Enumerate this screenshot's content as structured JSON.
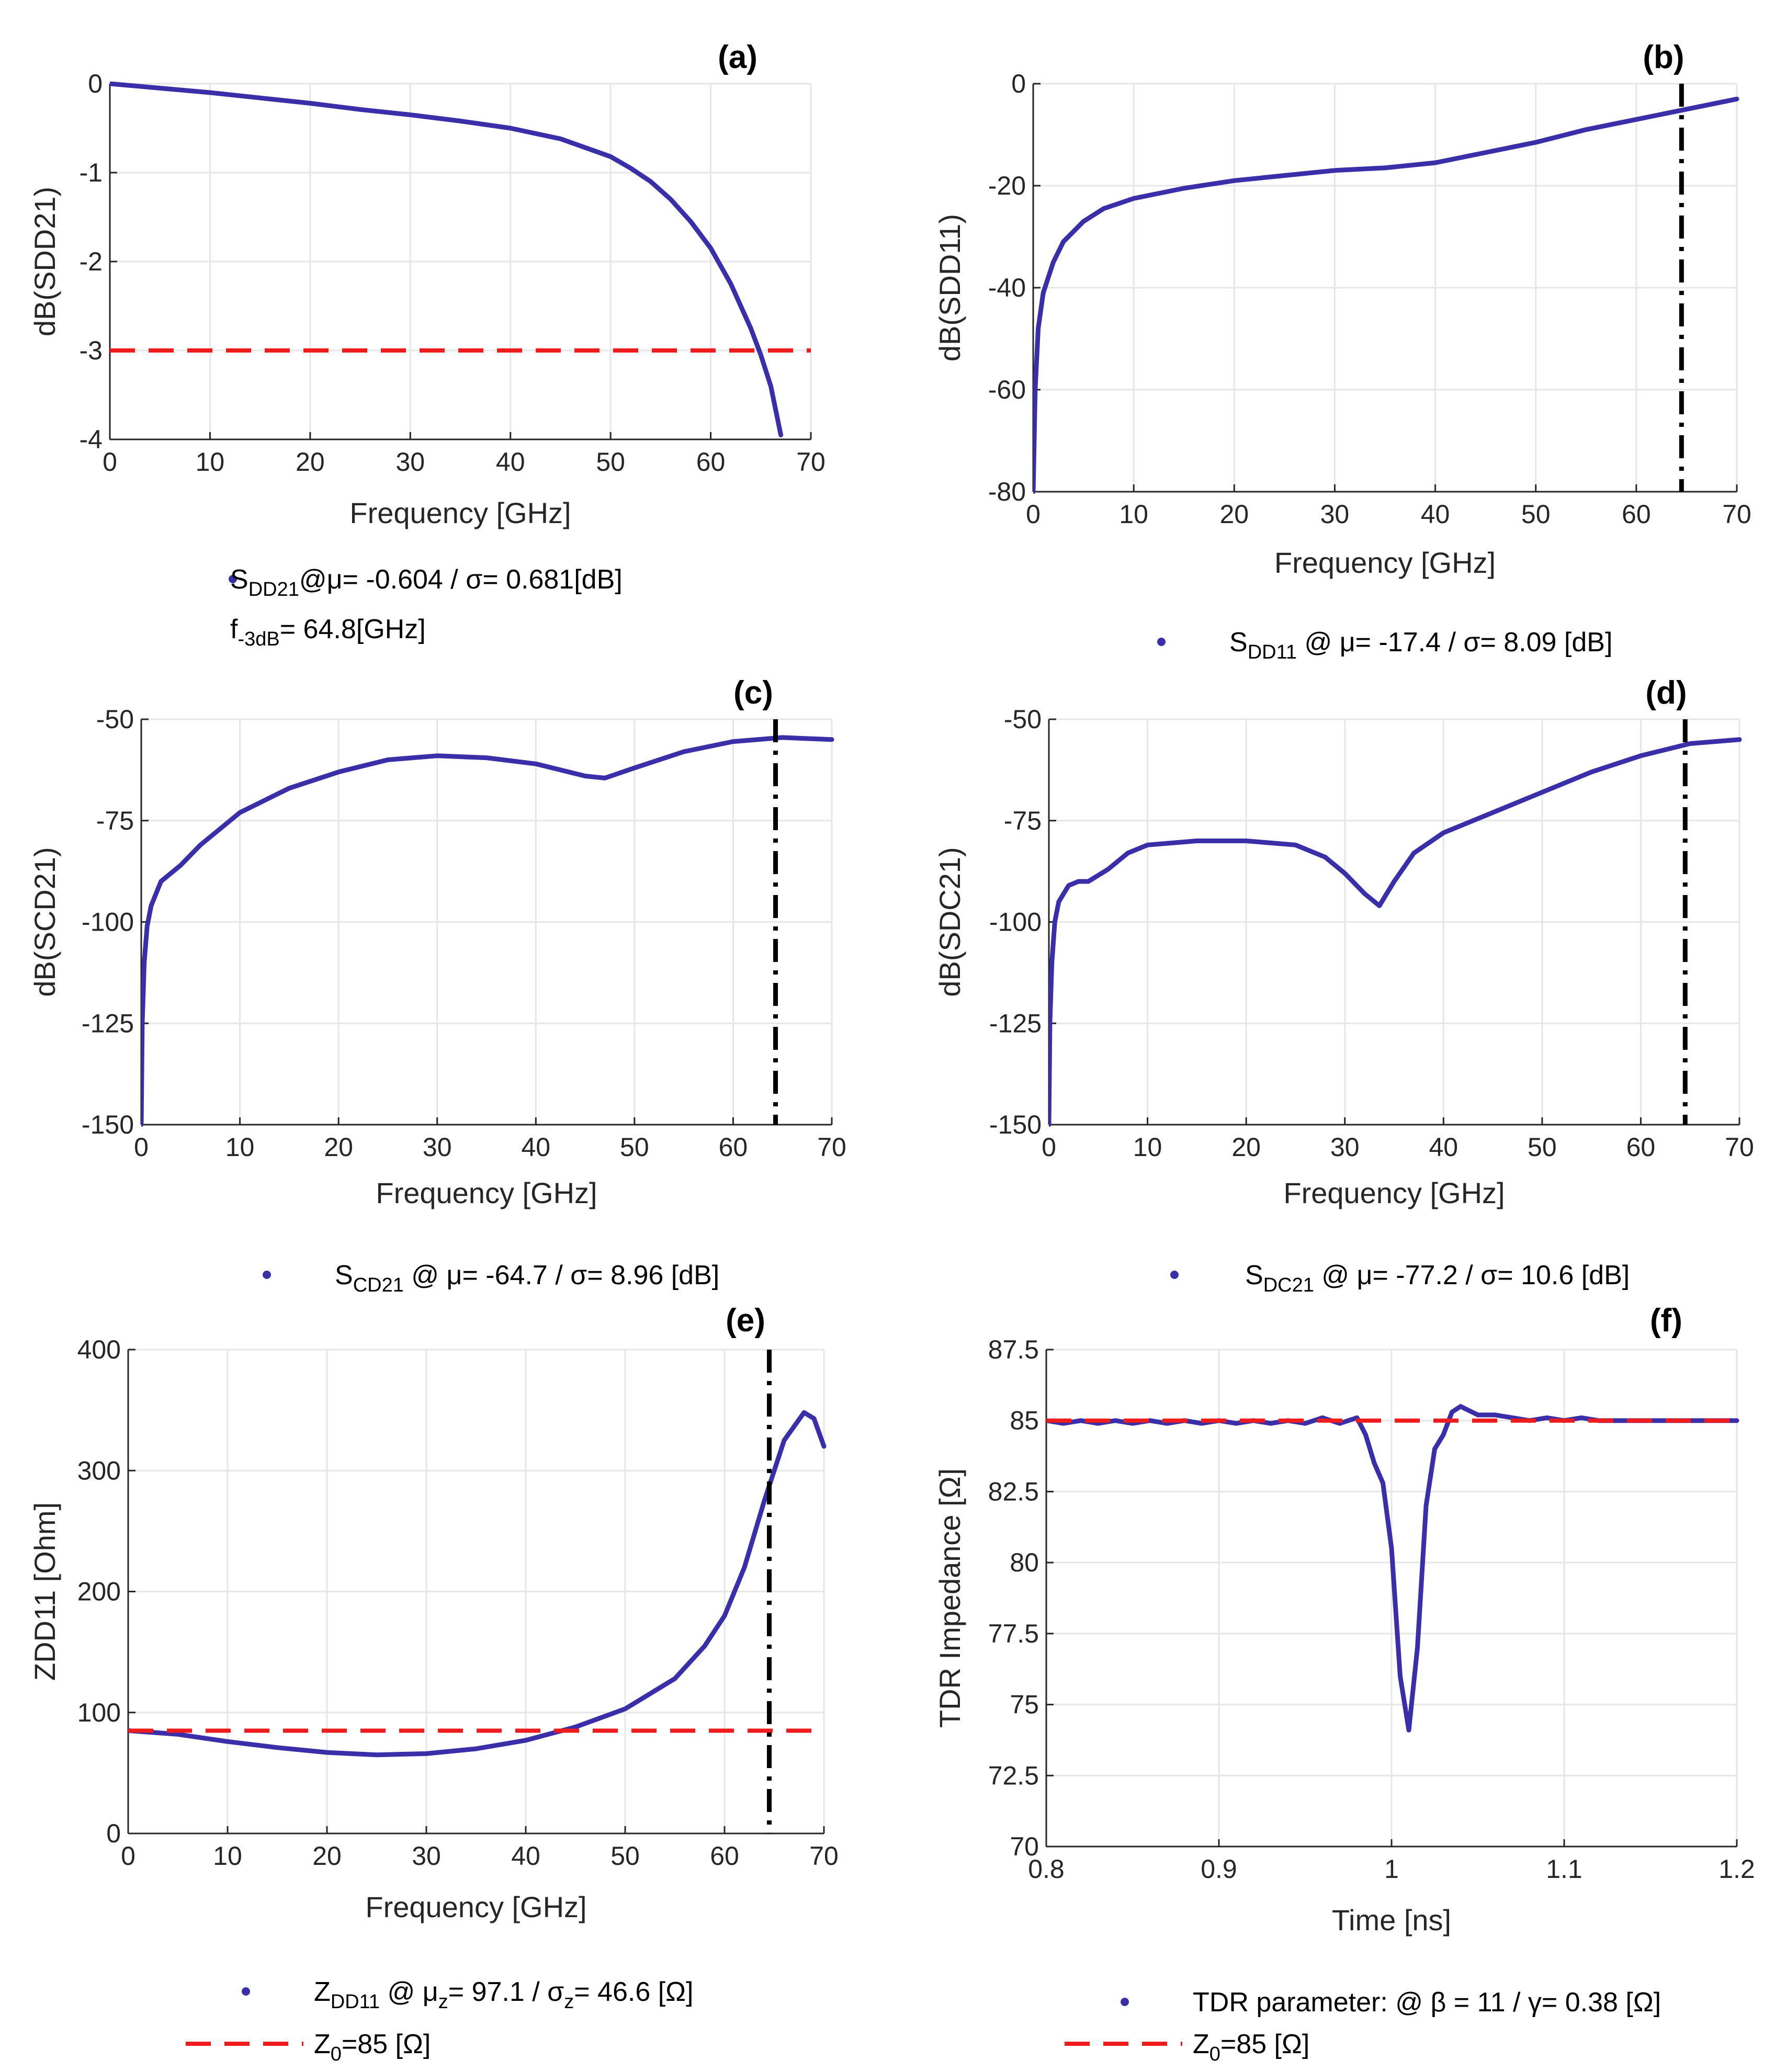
{
  "colors": {
    "series": "#3a2fa8",
    "reference": "#ee1c1c",
    "marker": "#000000",
    "grid": "#e6e6e6",
    "axis": "#262626"
  },
  "chart_data": [
    {
      "id": "a",
      "type": "line",
      "title": "(a)",
      "xlabel": "Frequency [GHz]",
      "ylabel": "dB(SDD21)",
      "xlim": [
        0,
        70
      ],
      "ylim": [
        -4,
        0
      ],
      "xticks": [
        0,
        10,
        20,
        30,
        40,
        50,
        60,
        70
      ],
      "yticks": [
        -4,
        -3,
        -2,
        -1,
        0
      ],
      "grid": true,
      "series": [
        {
          "name": "SDD21",
          "color": "#3a2fa8",
          "x": [
            0,
            5,
            10,
            15,
            20,
            25,
            30,
            35,
            40,
            45,
            50,
            52,
            54,
            56,
            58,
            60,
            62,
            64,
            65,
            66,
            67
          ],
          "y": [
            0,
            -0.05,
            -0.1,
            -0.16,
            -0.22,
            -0.29,
            -0.35,
            -0.42,
            -0.5,
            -0.62,
            -0.82,
            -0.95,
            -1.1,
            -1.3,
            -1.55,
            -1.85,
            -2.25,
            -2.75,
            -3.05,
            -3.4,
            -3.95
          ]
        }
      ],
      "hlines": [
        {
          "y": -3,
          "color": "#ee1c1c",
          "style": "dashed"
        }
      ],
      "vlines": [],
      "legend": [
        {
          "kind": "marker",
          "text": "S",
          "sub": "DD21",
          "tail": "@μ= -0.604 / σ= 0.681[dB]",
          "line2": "f",
          "line2sub": "-3dB",
          "line2tail": "= 64.8[GHz]"
        }
      ]
    },
    {
      "id": "b",
      "type": "line",
      "title": "(b)",
      "xlabel": "Frequency [GHz]",
      "ylabel": "dB(SDD11)",
      "xlim": [
        0,
        70
      ],
      "ylim": [
        -80,
        0
      ],
      "xticks": [
        0,
        10,
        20,
        30,
        40,
        50,
        60,
        70
      ],
      "yticks": [
        -80,
        -60,
        -40,
        -20,
        0
      ],
      "grid": true,
      "series": [
        {
          "name": "SDD11",
          "color": "#3a2fa8",
          "x": [
            0,
            0.2,
            0.5,
            1,
            2,
            3,
            5,
            7,
            10,
            15,
            20,
            25,
            30,
            35,
            40,
            45,
            50,
            55,
            60,
            65,
            70
          ],
          "y": [
            -80,
            -60,
            -48,
            -41,
            -35,
            -31,
            -27,
            -24.5,
            -22.5,
            -20.5,
            -19,
            -18,
            -17,
            -16.5,
            -15.5,
            -13.5,
            -11.5,
            -9,
            -7,
            -5,
            -3
          ]
        }
      ],
      "hlines": [],
      "vlines": [
        {
          "x": 64.5,
          "color": "#000000",
          "style": "dashdot"
        }
      ],
      "legend": [
        {
          "kind": "marker",
          "text": "S",
          "sub": "DD11",
          "tail": " @ μ= -17.4 / σ= 8.09 [dB]"
        }
      ]
    },
    {
      "id": "c",
      "type": "line",
      "title": "(c)",
      "xlabel": "Frequency [GHz]",
      "ylabel": "dB(SCD21)",
      "xlim": [
        0,
        70
      ],
      "ylim": [
        -150,
        -50
      ],
      "xticks": [
        0,
        10,
        20,
        30,
        40,
        50,
        60,
        70
      ],
      "yticks": [
        -150,
        -125,
        -100,
        -75,
        -50
      ],
      "grid": true,
      "series": [
        {
          "name": "SCD21",
          "color": "#3a2fa8",
          "x": [
            0,
            0.1,
            0.3,
            0.6,
            1,
            2,
            4,
            6,
            8,
            10,
            15,
            20,
            25,
            30,
            35,
            40,
            45,
            47,
            50,
            55,
            60,
            65,
            70
          ],
          "y": [
            -150,
            -125,
            -110,
            -101,
            -96,
            -90,
            -86,
            -81,
            -77,
            -73,
            -67,
            -63,
            -60,
            -59,
            -59.5,
            -61,
            -64,
            -64.5,
            -62,
            -58,
            -55.5,
            -54.5,
            -55
          ]
        }
      ],
      "hlines": [],
      "vlines": [
        {
          "x": 64.3,
          "color": "#000000",
          "style": "dashdot"
        }
      ],
      "legend": [
        {
          "kind": "marker",
          "text": "S",
          "sub": "CD21",
          "tail": " @ μ= -64.7 / σ= 8.96 [dB]"
        }
      ]
    },
    {
      "id": "d",
      "type": "line",
      "title": "(d)",
      "xlabel": "Frequency [GHz]",
      "ylabel": "dB(SDC21)",
      "xlim": [
        0,
        70
      ],
      "ylim": [
        -150,
        -50
      ],
      "xticks": [
        0,
        10,
        20,
        30,
        40,
        50,
        60,
        70
      ],
      "yticks": [
        -150,
        -125,
        -100,
        -75,
        -50
      ],
      "grid": true,
      "series": [
        {
          "name": "SDC21",
          "color": "#3a2fa8",
          "x": [
            0,
            0.1,
            0.3,
            0.6,
            1,
            2,
            3,
            4,
            6,
            8,
            10,
            15,
            20,
            25,
            28,
            30,
            32,
            33.5,
            35,
            37,
            40,
            45,
            50,
            55,
            60,
            65,
            70
          ],
          "y": [
            -150,
            -125,
            -110,
            -100,
            -95,
            -91,
            -90,
            -90,
            -87,
            -83,
            -81,
            -80,
            -80,
            -81,
            -84,
            -88,
            -93,
            -96,
            -90,
            -83,
            -78,
            -73,
            -68,
            -63,
            -59,
            -56,
            -55
          ]
        }
      ],
      "hlines": [],
      "vlines": [
        {
          "x": 64.5,
          "color": "#000000",
          "style": "dashdot"
        }
      ],
      "legend": [
        {
          "kind": "marker",
          "text": "S",
          "sub": "DC21",
          "tail": " @ μ= -77.2 / σ= 10.6 [dB]"
        }
      ]
    },
    {
      "id": "e",
      "type": "line",
      "title": "(e)",
      "xlabel": "Frequency [GHz]",
      "ylabel": "ZDD11 [Ohm]",
      "xlim": [
        0,
        70
      ],
      "ylim": [
        0,
        400
      ],
      "xticks": [
        0,
        10,
        20,
        30,
        40,
        50,
        60,
        70
      ],
      "yticks": [
        0,
        100,
        200,
        300,
        400
      ],
      "grid": true,
      "series": [
        {
          "name": "ZDD11",
          "color": "#3a2fa8",
          "x": [
            0,
            5,
            10,
            15,
            20,
            25,
            30,
            35,
            40,
            45,
            50,
            55,
            58,
            60,
            62,
            64,
            66,
            68,
            69,
            70
          ],
          "y": [
            85,
            82,
            76,
            71,
            67,
            65,
            66,
            70,
            77,
            88,
            103,
            128,
            155,
            180,
            220,
            275,
            325,
            348,
            343,
            320
          ]
        }
      ],
      "hlines": [
        {
          "y": 85,
          "color": "#ee1c1c",
          "style": "dashed"
        }
      ],
      "vlines": [
        {
          "x": 64.5,
          "color": "#000000",
          "style": "dashdot"
        }
      ],
      "legend": [
        {
          "kind": "marker",
          "text": "Z",
          "sub": "DD11",
          "tail": " @ μ",
          "sub2": "z",
          "tail2": "=  97.1 / σ",
          "sub3": "z",
          "tail3": "=  46.6 [Ω]"
        },
        {
          "kind": "dashed",
          "text": "Z",
          "sub": "0",
          "tail": "=85 [Ω]"
        }
      ]
    },
    {
      "id": "f",
      "type": "line",
      "title": "(f)",
      "xlabel": "Time [ns]",
      "ylabel": "TDR Impedance [Ω]",
      "xlim": [
        0.8,
        1.2
      ],
      "ylim": [
        70,
        87.5
      ],
      "xticks": [
        0.8,
        0.9,
        1,
        1.1,
        1.2
      ],
      "yticks": [
        70,
        72.5,
        75,
        77.5,
        80,
        82.5,
        85,
        87.5
      ],
      "grid": true,
      "series": [
        {
          "name": "TDR",
          "color": "#3a2fa8",
          "x": [
            0.8,
            0.81,
            0.82,
            0.83,
            0.84,
            0.85,
            0.86,
            0.87,
            0.88,
            0.89,
            0.9,
            0.91,
            0.92,
            0.93,
            0.94,
            0.95,
            0.96,
            0.97,
            0.98,
            0.985,
            0.99,
            0.995,
            1.0,
            1.005,
            1.01,
            1.015,
            1.02,
            1.025,
            1.03,
            1.035,
            1.04,
            1.05,
            1.06,
            1.07,
            1.08,
            1.09,
            1.1,
            1.11,
            1.12,
            1.13,
            1.14,
            1.15,
            1.16,
            1.17,
            1.18,
            1.19,
            1.2
          ],
          "y": [
            85,
            84.9,
            85,
            84.9,
            85,
            84.9,
            85,
            84.9,
            85,
            84.9,
            85,
            84.9,
            85,
            84.9,
            85,
            84.9,
            85.1,
            84.9,
            85.1,
            84.5,
            83.5,
            82.8,
            80.5,
            76,
            74.1,
            77,
            82,
            84,
            84.5,
            85.3,
            85.5,
            85.2,
            85.2,
            85.1,
            85,
            85.1,
            85,
            85.1,
            85,
            85,
            85,
            85,
            85,
            85,
            85,
            85,
            85
          ]
        }
      ],
      "hlines": [
        {
          "y": 85,
          "color": "#ee1c1c",
          "style": "dashed"
        }
      ],
      "vlines": [],
      "legend": [
        {
          "kind": "marker",
          "text": "TDR parameter: @ β = 11 / γ= 0.38 [Ω]"
        },
        {
          "kind": "dashed",
          "text": "Z",
          "sub": "0",
          "tail": "=85 [Ω]"
        }
      ]
    }
  ]
}
